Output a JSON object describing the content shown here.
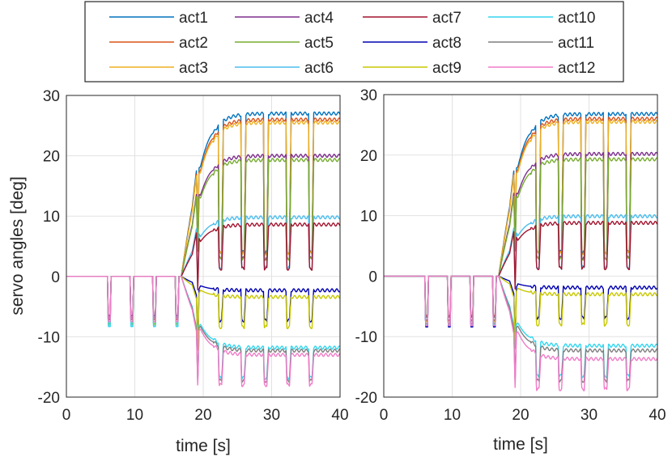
{
  "chart_data": {
    "type": "line",
    "legend": {
      "placement": "top",
      "entries": [
        {
          "label": "act1",
          "color": "#0072BD"
        },
        {
          "label": "act2",
          "color": "#D95319"
        },
        {
          "label": "act3",
          "color": "#EDB120"
        },
        {
          "label": "act4",
          "color": "#7E2F8E"
        },
        {
          "label": "act5",
          "color": "#77AC30"
        },
        {
          "label": "act6",
          "color": "#4DBEEE"
        },
        {
          "label": "act7",
          "color": "#A2142F"
        },
        {
          "label": "act8",
          "color": "#0000B0"
        },
        {
          "label": "act9",
          "color": "#C8C800"
        },
        {
          "label": "act10",
          "color": "#33D6EE"
        },
        {
          "label": "act11",
          "color": "#7F7F7F"
        },
        {
          "label": "act12",
          "color": "#F07CC8"
        }
      ]
    },
    "charts": [
      {
        "name": "left",
        "xlabel": "time [s]",
        "ylabel": "servo angles [deg]",
        "xlim": [
          0,
          40
        ],
        "ylim": [
          -20,
          30
        ],
        "xticks": [
          0,
          10,
          20,
          30,
          40
        ],
        "yticks": [
          -20,
          -10,
          0,
          10,
          20,
          30
        ],
        "grid": true,
        "series_final": [
          27,
          26,
          25.5,
          20,
          19.3,
          9.8,
          8.6,
          -2.3,
          -3.4,
          -11.8,
          -12.3,
          -13
        ],
        "pre_dips": [
          6,
          9.3,
          12.6,
          15.9
        ],
        "loaded_dips": [
          22.2,
          25.5,
          28.8,
          32.1,
          35.4
        ]
      },
      {
        "name": "right",
        "xlabel": "time [s]",
        "ylabel": "",
        "xlim": [
          0,
          40
        ],
        "ylim": [
          -20,
          30
        ],
        "xticks": [
          0,
          10,
          20,
          30,
          40
        ],
        "yticks": [
          -20,
          -10,
          0,
          10,
          20,
          30
        ],
        "grid": true,
        "series_final": [
          26.8,
          26,
          25.5,
          20.2,
          19.3,
          9.9,
          8.8,
          -1.9,
          -3,
          -11.5,
          -12.3,
          -13.7
        ],
        "pre_dips": [
          6,
          9.3,
          12.6,
          15.9
        ],
        "loaded_dips": [
          22.2,
          25.5,
          28.8,
          32.1,
          35.4
        ]
      }
    ]
  }
}
